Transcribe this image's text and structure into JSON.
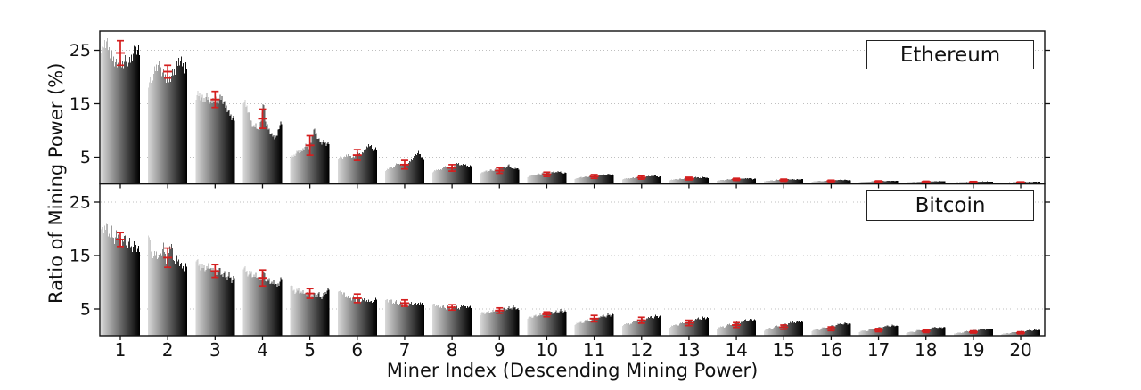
{
  "labels": {
    "x": "Miner Index (Descending Mining Power)",
    "y": "Ratio of Mining Power (%)"
  },
  "colors": {
    "background": "#ffffff",
    "axis": "#111111",
    "gridline": "#bfbfbf",
    "bar_light": "#d7d7d7",
    "bar_dark": "#000000",
    "error_bar": "#d41f1f"
  },
  "chart_data": [
    {
      "type": "bar",
      "panel": "top",
      "title": "Ethereum",
      "ylabel": "Ratio of Mining Power (%)",
      "xlabel": "Miner Index (Descending Mining Power)",
      "categories": [
        1,
        2,
        3,
        4,
        5,
        6,
        7,
        8,
        9,
        10,
        11,
        12,
        13,
        14,
        15,
        16,
        17,
        18,
        19,
        20
      ],
      "yticks": [
        5,
        15,
        25
      ],
      "ylim": [
        0,
        28.3
      ],
      "grid": "dotted-horizontal",
      "bars_per_cluster": 44,
      "cluster_note": "each cluster = many snapshots shaded light-to-dark left-to-right; red marker = mean with error bar",
      "mean": [
        24.5,
        21.0,
        15.8,
        12.2,
        7.2,
        5.4,
        3.6,
        3.0,
        2.5,
        1.8,
        1.4,
        1.2,
        1.0,
        0.85,
        0.7,
        0.55,
        0.45,
        0.4,
        0.35,
        0.3
      ],
      "error": [
        2.3,
        1.2,
        1.5,
        1.8,
        1.8,
        1.0,
        0.8,
        0.6,
        0.5,
        0.4,
        0.35,
        0.3,
        0.25,
        0.2,
        0.2,
        0.15,
        0.12,
        0.1,
        0.1,
        0.08
      ],
      "profiles": [
        [
          25.5,
          26.0,
          26.8,
          25.2,
          24.0,
          23.2,
          22.4,
          22.0,
          22.3,
          22.8,
          23.5,
          22.5,
          23.8,
          24.8,
          25.3,
          24.6
        ],
        [
          18.8,
          19.3,
          20.5,
          21.8,
          22.3,
          21.2,
          20.6,
          19.8,
          19.4,
          20.2,
          21.0,
          21.8,
          23.3,
          22.8,
          21.6,
          21.9
        ],
        [
          16.5,
          16.8,
          16.2,
          15.6,
          16.4,
          15.8,
          15.2,
          16.0,
          15.5,
          15.8,
          16.2,
          15.0,
          14.2,
          13.2,
          12.4,
          12.1
        ],
        [
          15.8,
          14.8,
          13.6,
          11.8,
          10.4,
          11.2,
          9.6,
          12.4,
          15.2,
          11.0,
          10.2,
          9.2,
          8.8,
          8.6,
          10.8,
          11.4
        ],
        [
          4.9,
          5.2,
          5.6,
          6.3,
          5.8,
          6.6,
          7.2,
          6.8,
          7.8,
          10.2,
          9.4,
          8.2,
          7.6,
          7.9,
          7.4,
          7.6
        ],
        [
          4.8,
          5.0,
          4.7,
          5.3,
          5.6,
          5.1,
          4.9,
          5.5,
          5.8,
          5.4,
          6.1,
          6.6,
          7.4,
          6.9,
          6.4,
          6.6
        ],
        [
          2.5,
          2.8,
          3.2,
          2.9,
          3.6,
          4.1,
          3.4,
          3.8,
          3.3,
          3.9,
          4.4,
          4.9,
          5.6,
          5.9,
          5.2,
          4.6
        ],
        [
          2.3,
          2.5,
          2.8,
          2.6,
          3.0,
          3.3,
          2.9,
          3.4,
          3.1,
          3.6,
          3.9,
          3.4,
          3.7,
          3.5,
          3.2,
          3.4
        ],
        [
          2.0,
          2.2,
          2.5,
          2.3,
          2.7,
          2.4,
          2.8,
          2.6,
          3.0,
          3.3,
          2.9,
          3.6,
          3.1,
          2.8,
          3.0,
          2.7
        ],
        [
          1.3,
          1.5,
          1.7,
          1.6,
          1.9,
          1.8,
          2.1,
          1.9,
          2.2,
          2.0,
          2.3,
          2.1,
          2.4,
          2.2,
          2.0,
          2.1
        ],
        [
          1.0,
          1.1,
          1.3,
          1.2,
          1.4,
          1.3,
          1.5,
          1.4,
          1.6,
          1.5,
          1.7,
          1.8,
          1.6,
          1.9,
          1.7,
          1.8
        ],
        [
          0.9,
          1.0,
          1.1,
          1.0,
          1.2,
          1.1,
          1.3,
          1.2,
          1.4,
          1.3,
          1.5,
          1.4,
          1.6,
          1.5,
          1.3,
          1.4
        ],
        [
          0.7,
          0.8,
          0.9,
          0.8,
          1.0,
          0.9,
          1.1,
          1.0,
          1.2,
          1.1,
          1.3,
          1.2,
          1.1,
          1.3,
          1.2,
          1.1
        ],
        [
          0.6,
          0.7,
          0.8,
          0.7,
          0.9,
          0.8,
          1.0,
          0.9,
          1.0,
          0.9,
          1.1,
          1.0,
          1.1,
          1.0,
          0.9,
          1.0
        ],
        [
          0.5,
          0.6,
          0.6,
          0.7,
          0.6,
          0.8,
          0.7,
          0.8,
          0.7,
          0.9,
          0.8,
          0.9,
          0.8,
          0.9,
          0.8,
          0.9
        ],
        [
          0.4,
          0.5,
          0.5,
          0.6,
          0.5,
          0.6,
          0.6,
          0.7,
          0.6,
          0.7,
          0.7,
          0.8,
          0.7,
          0.8,
          0.7,
          0.7
        ],
        [
          0.35,
          0.4,
          0.4,
          0.45,
          0.4,
          0.5,
          0.45,
          0.5,
          0.5,
          0.55,
          0.5,
          0.6,
          0.55,
          0.6,
          0.55,
          0.6
        ],
        [
          0.3,
          0.35,
          0.35,
          0.4,
          0.35,
          0.45,
          0.4,
          0.45,
          0.4,
          0.5,
          0.45,
          0.5,
          0.45,
          0.55,
          0.5,
          0.5
        ],
        [
          0.25,
          0.3,
          0.3,
          0.35,
          0.3,
          0.4,
          0.35,
          0.4,
          0.35,
          0.45,
          0.4,
          0.45,
          0.4,
          0.45,
          0.4,
          0.45
        ],
        [
          0.2,
          0.25,
          0.25,
          0.3,
          0.25,
          0.35,
          0.3,
          0.35,
          0.3,
          0.4,
          0.35,
          0.4,
          0.35,
          0.4,
          0.35,
          0.4
        ]
      ]
    },
    {
      "type": "bar",
      "panel": "bottom",
      "title": "Bitcoin",
      "ylabel": "Ratio of Mining Power (%)",
      "xlabel": "Miner Index (Descending Mining Power)",
      "categories": [
        1,
        2,
        3,
        4,
        5,
        6,
        7,
        8,
        9,
        10,
        11,
        12,
        13,
        14,
        15,
        16,
        17,
        18,
        19,
        20
      ],
      "yticks": [
        5,
        15,
        25
      ],
      "ylim": [
        0,
        28.3
      ],
      "grid": "dotted-horizontal",
      "bars_per_cluster": 44,
      "cluster_note": "each cluster = many snapshots shaded light-to-dark left-to-right; red marker = mean with error bar",
      "mean": [
        18.0,
        14.6,
        12.1,
        10.8,
        7.9,
        7.0,
        6.1,
        5.3,
        4.7,
        4.0,
        3.2,
        2.9,
        2.4,
        2.0,
        1.6,
        1.3,
        1.05,
        0.85,
        0.7,
        0.55
      ],
      "error": [
        1.3,
        1.8,
        1.2,
        1.5,
        0.9,
        0.8,
        0.6,
        0.5,
        0.5,
        0.45,
        0.6,
        0.55,
        0.5,
        0.45,
        0.4,
        0.35,
        0.3,
        0.25,
        0.2,
        0.18
      ],
      "profiles": [
        [
          20.8,
          19.5,
          21.2,
          18.4,
          20.2,
          17.6,
          19.0,
          18.2,
          17.2,
          18.8,
          16.8,
          17.8,
          16.2,
          17.0,
          16.4,
          16.0
        ],
        [
          19.6,
          16.2,
          14.8,
          15.6,
          14.4,
          15.2,
          16.8,
          14.0,
          15.8,
          17.4,
          13.6,
          14.6,
          13.8,
          13.0,
          12.6,
          13.2
        ],
        [
          14.6,
          13.4,
          12.6,
          13.0,
          12.2,
          13.4,
          12.0,
          12.6,
          11.6,
          12.8,
          11.2,
          11.8,
          10.6,
          11.4,
          10.2,
          11.0
        ],
        [
          13.0,
          12.2,
          11.4,
          12.0,
          10.8,
          11.6,
          10.4,
          11.0,
          12.2,
          10.0,
          10.6,
          9.6,
          10.2,
          9.2,
          9.8,
          10.8
        ],
        [
          9.8,
          8.6,
          8.0,
          8.8,
          7.8,
          8.4,
          7.6,
          8.2,
          7.2,
          7.9,
          7.4,
          8.0,
          7.0,
          7.7,
          8.2,
          8.8
        ],
        [
          8.6,
          7.8,
          8.2,
          7.2,
          7.6,
          6.8,
          7.3,
          6.6,
          7.0,
          6.4,
          6.9,
          6.3,
          6.7,
          6.2,
          6.6,
          6.9
        ],
        [
          7.0,
          6.4,
          6.8,
          6.0,
          6.5,
          5.8,
          6.2,
          5.6,
          6.0,
          5.5,
          6.3,
          5.7,
          6.1,
          5.9,
          6.2,
          6.0
        ],
        [
          6.2,
          5.6,
          5.9,
          5.2,
          5.7,
          5.0,
          5.5,
          4.9,
          5.3,
          5.6,
          5.0,
          5.4,
          5.8,
          5.2,
          5.5,
          5.3
        ],
        [
          4.0,
          4.4,
          4.1,
          4.6,
          4.2,
          4.8,
          4.4,
          5.0,
          4.6,
          5.2,
          4.8,
          5.3,
          5.0,
          5.5,
          5.1,
          4.9
        ],
        [
          3.3,
          3.6,
          3.4,
          3.9,
          3.6,
          4.1,
          3.8,
          4.3,
          4.0,
          4.5,
          4.1,
          4.6,
          4.3,
          4.8,
          4.4,
          4.6
        ],
        [
          2.1,
          2.4,
          2.6,
          2.3,
          2.8,
          3.0,
          2.7,
          3.2,
          3.4,
          3.1,
          3.6,
          3.8,
          3.5,
          4.0,
          3.7,
          4.1
        ],
        [
          1.9,
          2.2,
          2.4,
          2.1,
          2.6,
          2.8,
          2.5,
          3.0,
          3.2,
          2.9,
          3.4,
          3.6,
          3.3,
          3.8,
          3.5,
          3.7
        ],
        [
          1.6,
          1.9,
          2.1,
          1.8,
          2.3,
          2.5,
          2.2,
          2.7,
          2.9,
          2.6,
          3.1,
          3.3,
          3.0,
          3.5,
          3.2,
          3.4
        ],
        [
          1.3,
          1.6,
          1.8,
          1.5,
          2.0,
          2.2,
          1.9,
          2.4,
          2.6,
          2.3,
          2.8,
          3.0,
          2.7,
          3.1,
          2.9,
          3.0
        ],
        [
          1.0,
          1.3,
          1.5,
          1.2,
          1.7,
          1.9,
          1.6,
          2.1,
          2.3,
          2.0,
          2.5,
          2.6,
          2.4,
          2.7,
          2.5,
          2.6
        ],
        [
          0.9,
          1.1,
          1.3,
          1.0,
          1.5,
          1.6,
          1.4,
          1.8,
          2.0,
          1.7,
          2.2,
          2.3,
          2.1,
          2.4,
          2.2,
          2.3
        ],
        [
          0.7,
          0.9,
          1.0,
          0.8,
          1.2,
          1.3,
          1.1,
          1.5,
          1.6,
          1.4,
          1.8,
          1.9,
          1.7,
          2.0,
          1.8,
          1.9
        ],
        [
          0.5,
          0.7,
          0.8,
          0.6,
          1.0,
          1.1,
          0.9,
          1.2,
          1.3,
          1.1,
          1.5,
          1.6,
          1.4,
          1.6,
          1.5,
          1.6
        ],
        [
          0.4,
          0.5,
          0.6,
          0.5,
          0.8,
          0.9,
          0.7,
          1.0,
          1.1,
          0.9,
          1.2,
          1.3,
          1.1,
          1.3,
          1.2,
          1.3
        ],
        [
          0.3,
          0.4,
          0.5,
          0.4,
          0.6,
          0.7,
          0.6,
          0.8,
          0.9,
          0.7,
          1.0,
          1.1,
          0.9,
          1.1,
          1.0,
          1.1
        ]
      ]
    }
  ]
}
